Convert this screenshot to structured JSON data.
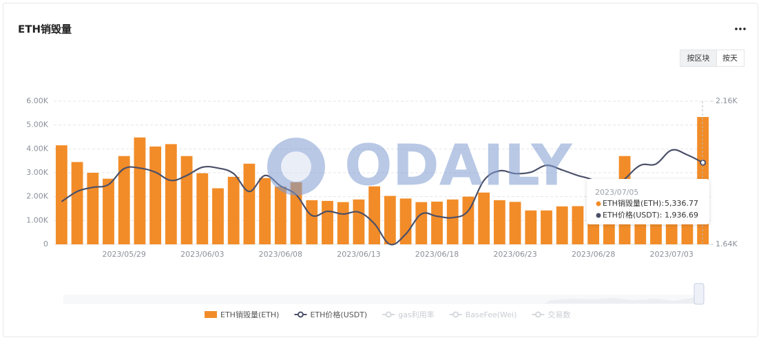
{
  "chart_data": {
    "type": "bar",
    "title": "ETH销毁量",
    "buttons": [
      "按区块",
      "按天"
    ],
    "watermark": "ODAILY",
    "categories": [
      null,
      null,
      null,
      null,
      "2023/05/29",
      null,
      null,
      null,
      null,
      "2023/06/03",
      null,
      null,
      null,
      null,
      "2023/06/08",
      null,
      null,
      null,
      null,
      "2023/06/13",
      null,
      null,
      null,
      null,
      "2023/06/18",
      null,
      null,
      null,
      null,
      "2023/06/23",
      null,
      null,
      null,
      null,
      "2023/06/28",
      null,
      null,
      null,
      null,
      "2023/07/03",
      null,
      null
    ],
    "series": [
      {
        "name": "ETH销毁量(ETH)",
        "type": "bar",
        "color": "#f28c28",
        "values": [
          4150,
          3450,
          3000,
          2750,
          3700,
          4480,
          4100,
          4200,
          3700,
          2980,
          2350,
          2830,
          3380,
          2780,
          2420,
          2600,
          1850,
          1820,
          1770,
          1880,
          2430,
          2030,
          1920,
          1770,
          1790,
          1880,
          2000,
          2170,
          1850,
          1780,
          1420,
          1420,
          1590,
          1600,
          1700,
          2500,
          3700,
          2400,
          2500,
          2600,
          2700,
          5336.77
        ]
      },
      {
        "name": "ETH价格(USDT)",
        "type": "line",
        "axis": "y2",
        "color": "#4b5069",
        "values": [
          1795,
          1832,
          1847,
          1857,
          1915,
          1917,
          1902,
          1872,
          1890,
          1920,
          1917,
          1897,
          1832,
          1890,
          1852,
          1820,
          1745,
          1760,
          1750,
          1757,
          1715,
          1640,
          1677,
          1750,
          1742,
          1737,
          1762,
          1872,
          1907,
          1897,
          1902,
          1927,
          1910,
          1890,
          1872,
          1827,
          1877,
          1927,
          1932,
          1982,
          1965,
          1936.69
        ]
      }
    ],
    "legend_inactive": [
      "gas利用率",
      "BaseFee(Wei)",
      "交易数"
    ],
    "ylim": [
      0,
      6000
    ],
    "yticks": [
      0,
      {
        "value": 1000,
        "label": "1.00K"
      },
      {
        "value": 2000,
        "label": "2.00K"
      },
      {
        "value": 3000,
        "label": "3.00K"
      },
      {
        "value": 4000,
        "label": "4.00K"
      },
      {
        "value": 5000,
        "label": "5.00K"
      },
      {
        "value": 6000,
        "label": "6.00K"
      }
    ],
    "y2lim": [
      1640,
      2160
    ],
    "y2ticks": [
      {
        "value": 1640,
        "label": "1.64K"
      },
      {
        "value": 2160,
        "label": "2.16K"
      }
    ],
    "grid": true,
    "tooltip": {
      "title": "2023/07/05",
      "index": 41,
      "rows": [
        {
          "label": "ETH销毁量(ETH):",
          "value_label": "5,336.77"
        },
        {
          "label": "ETH价格(USDT):",
          "value_label": "1,936.69"
        }
      ]
    }
  }
}
